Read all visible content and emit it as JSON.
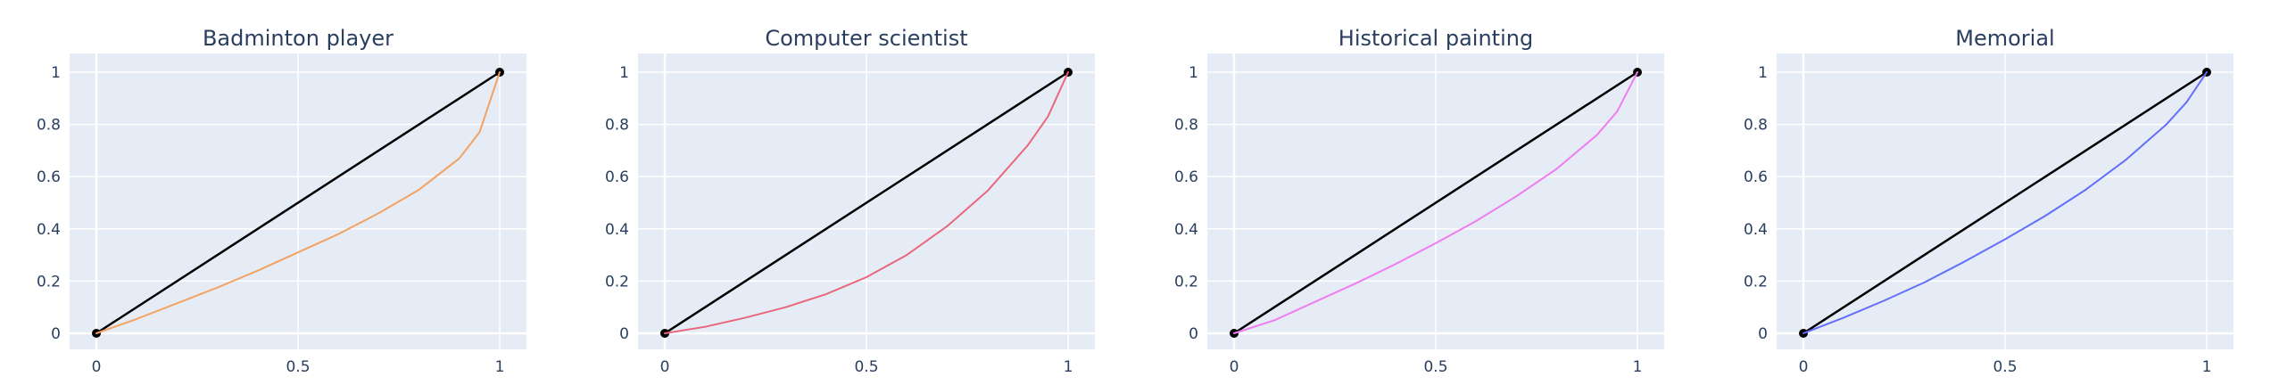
{
  "chart_data": [
    {
      "type": "line",
      "title": "Badminton player",
      "xlabel": "",
      "ylabel": "",
      "xlim": [
        0,
        1
      ],
      "ylim": [
        0,
        1
      ],
      "x_ticks": [
        "0",
        "0.5",
        "1"
      ],
      "y_ticks": [
        "0",
        "0.2",
        "0.4",
        "0.6",
        "0.8",
        "1"
      ],
      "grid": true,
      "background": "#e5ecf6",
      "series": [
        {
          "role": "reference",
          "color": "#000000",
          "markers": true,
          "x": [
            0,
            1
          ],
          "y": [
            0,
            1
          ]
        },
        {
          "role": "curve",
          "color": "#f4a261",
          "x": [
            0,
            0.1,
            0.2,
            0.3,
            0.4,
            0.5,
            0.6,
            0.7,
            0.8,
            0.9,
            0.95,
            1
          ],
          "y": [
            0,
            0.055,
            0.115,
            0.175,
            0.24,
            0.31,
            0.38,
            0.46,
            0.55,
            0.67,
            0.77,
            1
          ]
        }
      ]
    },
    {
      "type": "line",
      "title": "Computer scientist",
      "xlabel": "",
      "ylabel": "",
      "xlim": [
        0,
        1
      ],
      "ylim": [
        0,
        1
      ],
      "x_ticks": [
        "0",
        "0.5",
        "1"
      ],
      "y_ticks": [
        "0",
        "0.2",
        "0.4",
        "0.6",
        "0.8",
        "1"
      ],
      "grid": true,
      "background": "#e5ecf6",
      "series": [
        {
          "role": "reference",
          "color": "#000000",
          "markers": true,
          "x": [
            0,
            1
          ],
          "y": [
            0,
            1
          ]
        },
        {
          "role": "curve",
          "color": "#e9677b",
          "x": [
            0,
            0.1,
            0.2,
            0.3,
            0.4,
            0.5,
            0.6,
            0.7,
            0.8,
            0.9,
            0.95,
            1
          ],
          "y": [
            0,
            0.025,
            0.06,
            0.1,
            0.15,
            0.215,
            0.3,
            0.41,
            0.545,
            0.72,
            0.83,
            1
          ]
        }
      ]
    },
    {
      "type": "line",
      "title": "Historical painting",
      "xlabel": "",
      "ylabel": "",
      "xlim": [
        0,
        1
      ],
      "ylim": [
        0,
        1
      ],
      "x_ticks": [
        "0",
        "0.5",
        "1"
      ],
      "y_ticks": [
        "0",
        "0.2",
        "0.4",
        "0.6",
        "0.8",
        "1"
      ],
      "grid": true,
      "background": "#e5ecf6",
      "series": [
        {
          "role": "reference",
          "color": "#000000",
          "markers": true,
          "x": [
            0,
            1
          ],
          "y": [
            0,
            1
          ]
        },
        {
          "role": "curve",
          "color": "#ef7cf0",
          "x": [
            0,
            0.1,
            0.2,
            0.3,
            0.4,
            0.5,
            0.6,
            0.7,
            0.8,
            0.9,
            0.95,
            1
          ],
          "y": [
            0,
            0.05,
            0.12,
            0.19,
            0.265,
            0.345,
            0.43,
            0.525,
            0.63,
            0.76,
            0.85,
            1
          ]
        }
      ]
    },
    {
      "type": "line",
      "title": "Memorial",
      "xlabel": "",
      "ylabel": "",
      "xlim": [
        0,
        1
      ],
      "ylim": [
        0,
        1
      ],
      "x_ticks": [
        "0",
        "0.5",
        "1"
      ],
      "y_ticks": [
        "0",
        "0.2",
        "0.4",
        "0.6",
        "0.8",
        "1"
      ],
      "grid": true,
      "background": "#e5ecf6",
      "series": [
        {
          "role": "reference",
          "color": "#000000",
          "markers": true,
          "x": [
            0,
            1
          ],
          "y": [
            0,
            1
          ]
        },
        {
          "role": "curve",
          "color": "#636efa",
          "x": [
            0,
            0.1,
            0.2,
            0.3,
            0.4,
            0.5,
            0.6,
            0.7,
            0.8,
            0.9,
            0.95,
            1
          ],
          "y": [
            0,
            0.06,
            0.125,
            0.195,
            0.275,
            0.36,
            0.45,
            0.55,
            0.665,
            0.8,
            0.885,
            1
          ]
        }
      ]
    }
  ]
}
